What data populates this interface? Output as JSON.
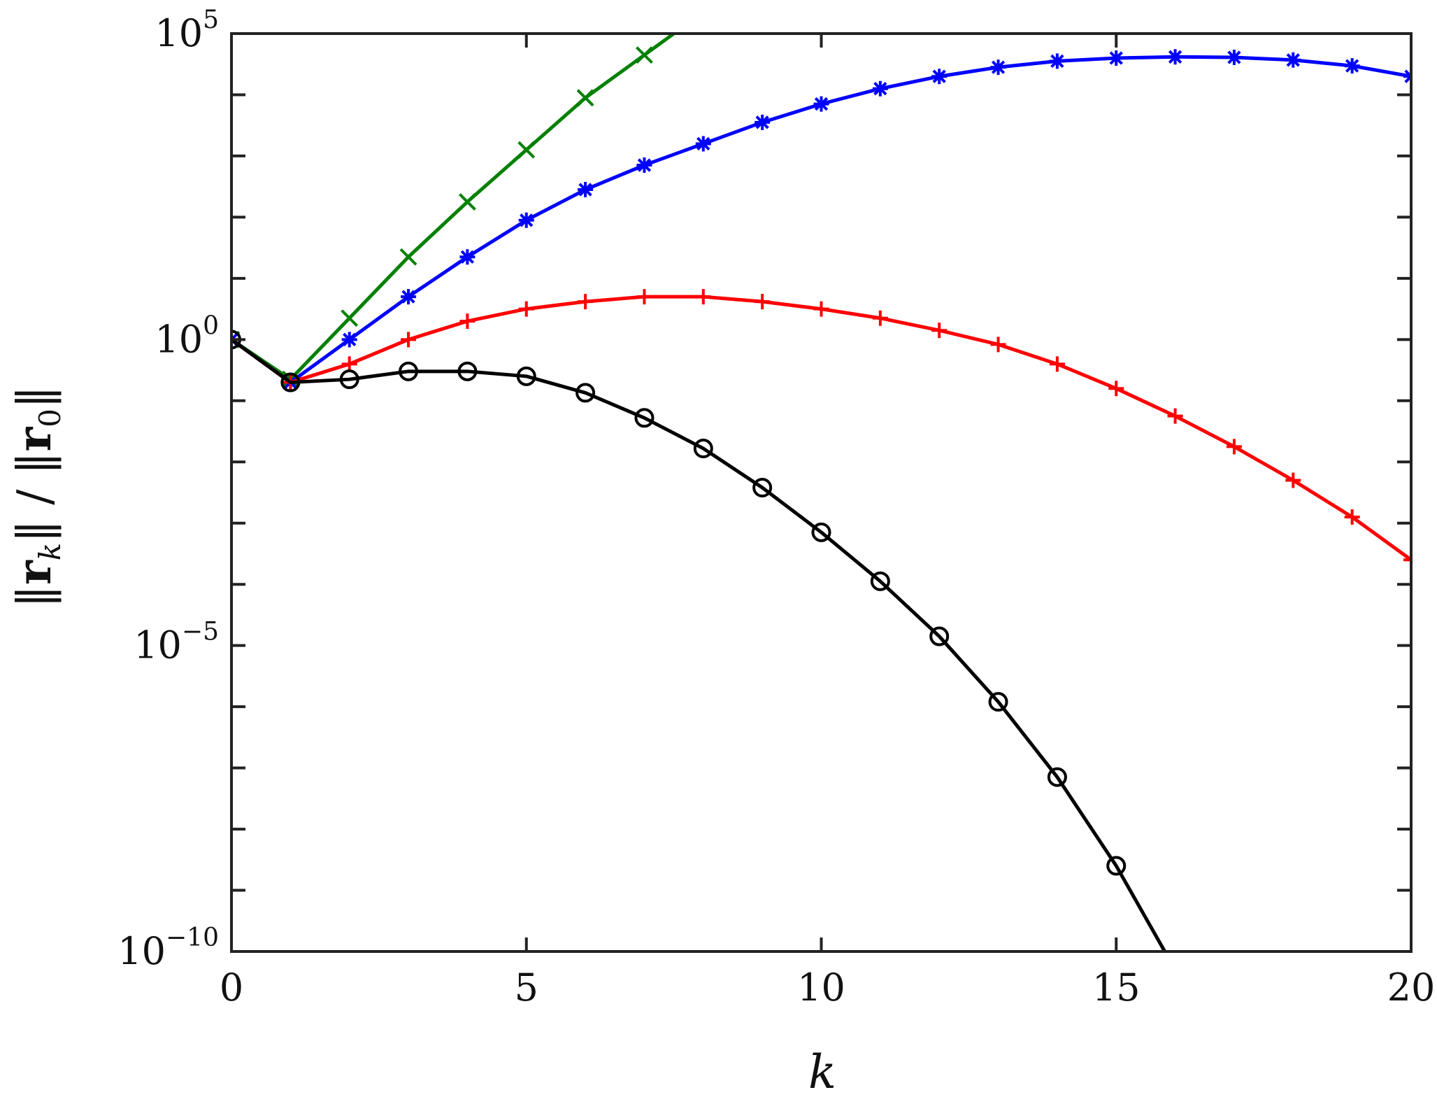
{
  "chart_data": {
    "type": "line",
    "xlabel": "k",
    "ylabel": {
      "parts": [
        "‖",
        "r",
        "k",
        "‖ / ‖",
        "r",
        "0",
        "‖"
      ]
    },
    "xlim": [
      0,
      20
    ],
    "ylim_log10": [
      -10,
      5
    ],
    "yscale": "log",
    "grid": false,
    "legend": "none",
    "xticks": [
      "0",
      "5",
      "10",
      "15",
      "20"
    ],
    "yticks": [
      {
        "base": "10",
        "exp": "5"
      },
      {
        "base": "10",
        "exp": "0"
      },
      {
        "base": "10",
        "exp": "−5"
      },
      {
        "base": "10",
        "exp": "−10"
      }
    ],
    "series": [
      {
        "color": "#008000",
        "marker": "x",
        "x": [
          0,
          1,
          2,
          3,
          4,
          5,
          6,
          7,
          8
        ],
        "log10_y": [
          0.0,
          -0.65,
          0.35,
          1.35,
          2.25,
          3.1,
          3.95,
          4.65,
          5.35
        ]
      },
      {
        "color": "#0000ff",
        "marker": "asterisk",
        "x": [
          0,
          1,
          2,
          3,
          4,
          5,
          6,
          7,
          8,
          9,
          10,
          11,
          12,
          13,
          14,
          15,
          16,
          17,
          18,
          19,
          20
        ],
        "log10_y": [
          0.0,
          -0.7,
          0.0,
          0.7,
          1.35,
          1.95,
          2.45,
          2.85,
          3.2,
          3.55,
          3.85,
          4.1,
          4.3,
          4.45,
          4.55,
          4.5996,
          4.6194,
          4.6114,
          4.5681,
          4.4728,
          4.3
        ]
      },
      {
        "color": "#ff0000",
        "marker": "plus",
        "x": [
          0,
          1,
          2,
          3,
          4,
          5,
          6,
          7,
          8,
          9,
          10,
          11,
          12,
          13,
          14,
          15,
          16,
          17,
          18,
          19,
          20
        ],
        "log10_y": [
          0.0,
          -0.7,
          -0.4,
          0.0,
          0.3,
          0.5,
          0.62,
          0.7,
          0.7,
          0.62,
          0.5,
          0.35,
          0.15,
          -0.08,
          -0.4,
          -0.8,
          -1.25,
          -1.75,
          -2.3,
          -2.9,
          -3.6
        ]
      },
      {
        "color": "#000000",
        "marker": "circle",
        "x": [
          0,
          1,
          2,
          3,
          4,
          5,
          6,
          7,
          8,
          9,
          10,
          11,
          12,
          13,
          14,
          15,
          16
        ],
        "log10_y": [
          0.0,
          -0.7,
          -0.65,
          -0.52,
          -0.52,
          -0.6,
          -0.87,
          -1.28,
          -1.78,
          -2.42,
          -3.15,
          -3.95,
          -4.85,
          -5.92,
          -7.15,
          -8.6,
          -10.3
        ]
      }
    ]
  }
}
